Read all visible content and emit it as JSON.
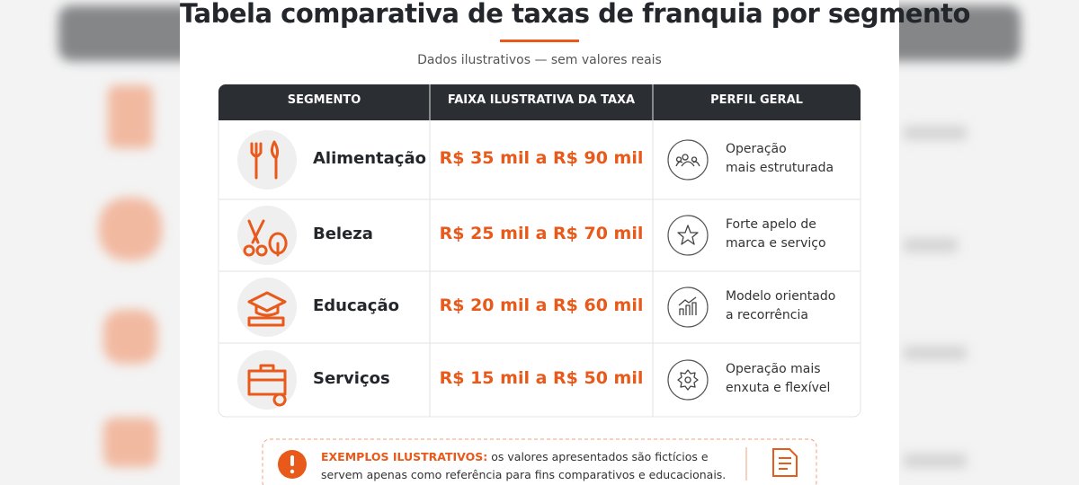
{
  "header": {
    "title": "Tabela comparativa de taxas de franquia por segmento",
    "subtitle": "Dados ilustrativos — sem valores reais"
  },
  "table": {
    "columns": [
      "SEGMENTO",
      "FAIXA ILUSTRATIVA DA TAXA",
      "PERFIL GERAL"
    ],
    "rows": [
      {
        "segment": "Alimentação",
        "range": "R$ 35 mil a R$ 90 mil",
        "profile": [
          "Operação",
          "mais estruturada"
        ]
      },
      {
        "segment": "Beleza",
        "range": "R$ 25 mil a R$ 70 mil",
        "profile": [
          "Forte apelo de",
          "marca e serviço"
        ]
      },
      {
        "segment": "Educação",
        "range": "R$ 20 mil a R$ 60 mil",
        "profile": [
          "Modelo orientado",
          "a recorrência"
        ]
      },
      {
        "segment": "Serviços",
        "range": "R$ 15 mil a R$ 50 mil",
        "profile": [
          "Operação mais",
          "enxuta e flexível"
        ]
      }
    ]
  },
  "note": {
    "label": "EXEMPLOS ILUSTRATIVOS:",
    "text": "os valores apresentados são fictícios e servem apenas como referência para fins comparativos e educacionais."
  }
}
